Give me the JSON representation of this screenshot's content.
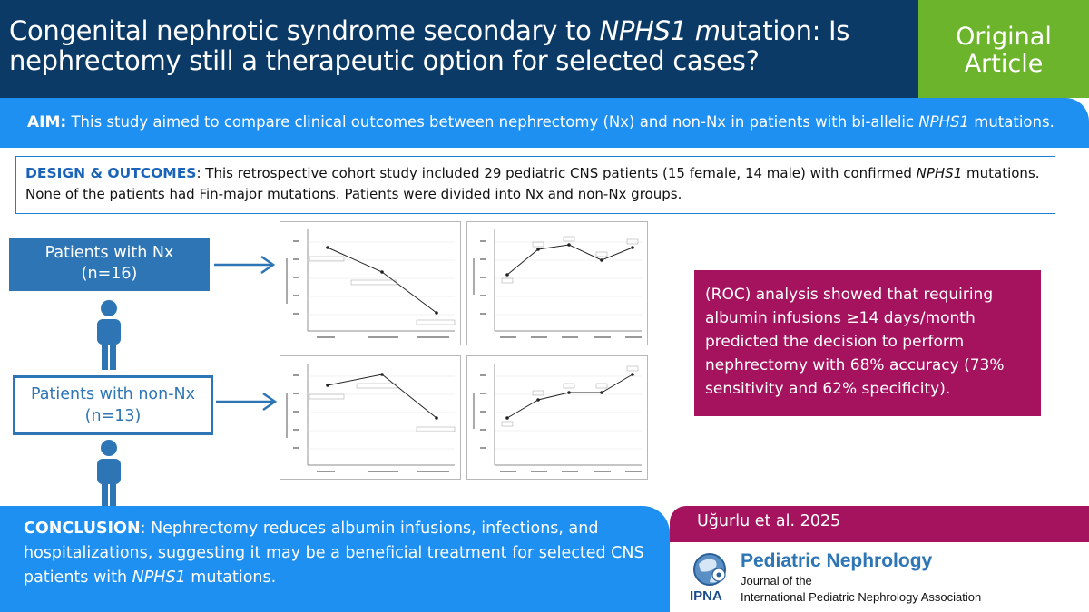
{
  "header": {
    "title_part1": "Congenital nephrotic syndrome secondary to ",
    "title_gene": "NPHS1",
    "title_m": " m",
    "title_part2": "utation: Is nephrectomy still a therapeutic option for selected cases?",
    "badge_line1": "Original",
    "badge_line2": "Article"
  },
  "aim": {
    "label": "AIM:",
    "text_before": " This study aimed to compare clinical outcomes between nephrectomy (Nx) and non-Nx in patients with bi-allelic ",
    "gene": "NPHS1",
    "text_after": " mutations."
  },
  "design": {
    "label": "DESIGN & OUTCOMES",
    "colon": ":",
    "text_before": " This retrospective cohort study included 29 pediatric CNS patients (15 female, 14 male) with confirmed ",
    "gene": "NPHS1",
    "text_after": " mutations. None of the patients had Fin-major mutations. Patients were divided into Nx and non-Nx groups."
  },
  "groups": {
    "nx_line1": "Patients with Nx",
    "nx_line2": "(n=16)",
    "nonnx_line1": "Patients with non-Nx",
    "nonnx_line2": "(n=13)"
  },
  "roc": {
    "text": "(ROC) analysis showed that requiring albumin infusions ≥14 days/month predicted the decision to perform nephrectomy with 68% accuracy (73% sensitivity and 62% specificity)."
  },
  "conclusion": {
    "label": "CONCLUSION",
    "colon": ":",
    "text_before": " Nephrectomy reduces albumin infusions, infections, and hospitalizations, suggesting it may be a beneficial treatment for selected CNS patients with ",
    "gene": "NPHS1",
    "text_after": " mutations."
  },
  "citation": {
    "text": "Uğurlu et al. 2025"
  },
  "journal": {
    "title": "Pediatric Nephrology",
    "sub1": "Journal of the",
    "sub2": "International Pediatric Nephrology Association",
    "logo_text": "IPNA"
  },
  "colors": {
    "navy": "#0b3a66",
    "green": "#6bb42c",
    "blue": "#1e90f2",
    "magenta": "#a5135f",
    "box_blue": "#2e75b6"
  },
  "icons": [
    "arrow-right-icon",
    "person-icon",
    "globe-logo-icon"
  ]
}
